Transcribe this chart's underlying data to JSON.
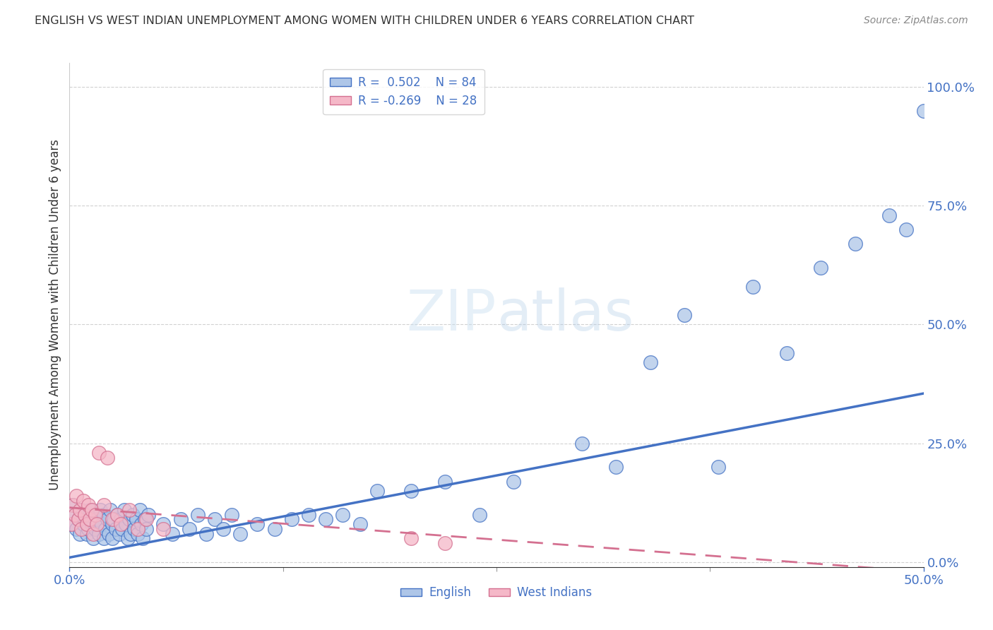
{
  "title": "ENGLISH VS WEST INDIAN UNEMPLOYMENT AMONG WOMEN WITH CHILDREN UNDER 6 YEARS CORRELATION CHART",
  "source": "Source: ZipAtlas.com",
  "ylabel": "Unemployment Among Women with Children Under 6 years",
  "xlim": [
    0.0,
    0.5
  ],
  "ylim": [
    -0.01,
    1.05
  ],
  "english_R": 0.502,
  "english_N": 84,
  "west_indian_R": -0.269,
  "west_indian_N": 28,
  "english_color": "#aec6e8",
  "west_indian_color": "#f5b8c8",
  "english_line_color": "#4472c4",
  "west_indian_line_color": "#d47090",
  "bg_color": "#ffffff",
  "eng_x": [
    0.001,
    0.002,
    0.003,
    0.004,
    0.005,
    0.006,
    0.007,
    0.008,
    0.009,
    0.01,
    0.01,
    0.011,
    0.012,
    0.013,
    0.014,
    0.015,
    0.015,
    0.016,
    0.017,
    0.018,
    0.019,
    0.02,
    0.02,
    0.021,
    0.022,
    0.023,
    0.024,
    0.025,
    0.025,
    0.026,
    0.027,
    0.028,
    0.029,
    0.03,
    0.031,
    0.032,
    0.033,
    0.034,
    0.035,
    0.036,
    0.037,
    0.038,
    0.039,
    0.04,
    0.041,
    0.042,
    0.043,
    0.044,
    0.045,
    0.046,
    0.055,
    0.06,
    0.065,
    0.07,
    0.075,
    0.08,
    0.085,
    0.09,
    0.095,
    0.1,
    0.11,
    0.12,
    0.13,
    0.14,
    0.15,
    0.16,
    0.17,
    0.18,
    0.2,
    0.22,
    0.24,
    0.26,
    0.3,
    0.32,
    0.34,
    0.36,
    0.38,
    0.4,
    0.42,
    0.44,
    0.46,
    0.48,
    0.49,
    0.5
  ],
  "eng_y": [
    0.08,
    0.12,
    0.1,
    0.07,
    0.09,
    0.06,
    0.11,
    0.08,
    0.1,
    0.06,
    0.09,
    0.07,
    0.11,
    0.08,
    0.05,
    0.1,
    0.07,
    0.09,
    0.06,
    0.11,
    0.08,
    0.05,
    0.1,
    0.07,
    0.09,
    0.06,
    0.11,
    0.08,
    0.05,
    0.09,
    0.07,
    0.1,
    0.06,
    0.09,
    0.07,
    0.11,
    0.08,
    0.05,
    0.09,
    0.06,
    0.1,
    0.07,
    0.09,
    0.06,
    0.11,
    0.08,
    0.05,
    0.09,
    0.07,
    0.1,
    0.08,
    0.06,
    0.09,
    0.07,
    0.1,
    0.06,
    0.09,
    0.07,
    0.1,
    0.06,
    0.08,
    0.07,
    0.09,
    0.1,
    0.09,
    0.1,
    0.08,
    0.15,
    0.15,
    0.17,
    0.1,
    0.17,
    0.25,
    0.2,
    0.42,
    0.52,
    0.2,
    0.58,
    0.44,
    0.62,
    0.67,
    0.73,
    0.7,
    0.95
  ],
  "wi_x": [
    0.001,
    0.002,
    0.003,
    0.004,
    0.005,
    0.006,
    0.007,
    0.008,
    0.009,
    0.01,
    0.011,
    0.012,
    0.013,
    0.014,
    0.015,
    0.016,
    0.017,
    0.02,
    0.022,
    0.025,
    0.028,
    0.03,
    0.035,
    0.04,
    0.045,
    0.055,
    0.2,
    0.22
  ],
  "wi_y": [
    0.08,
    0.12,
    0.1,
    0.14,
    0.09,
    0.11,
    0.07,
    0.13,
    0.1,
    0.08,
    0.12,
    0.09,
    0.11,
    0.06,
    0.1,
    0.08,
    0.23,
    0.12,
    0.22,
    0.09,
    0.1,
    0.08,
    0.11,
    0.07,
    0.09,
    0.07,
    0.05,
    0.04
  ],
  "eng_line_x0": 0.0,
  "eng_line_y0": 0.01,
  "eng_line_x1": 0.5,
  "eng_line_y1": 0.355,
  "wi_line_x0": 0.0,
  "wi_line_y0": 0.115,
  "wi_line_x1": 0.5,
  "wi_line_y1": -0.02
}
